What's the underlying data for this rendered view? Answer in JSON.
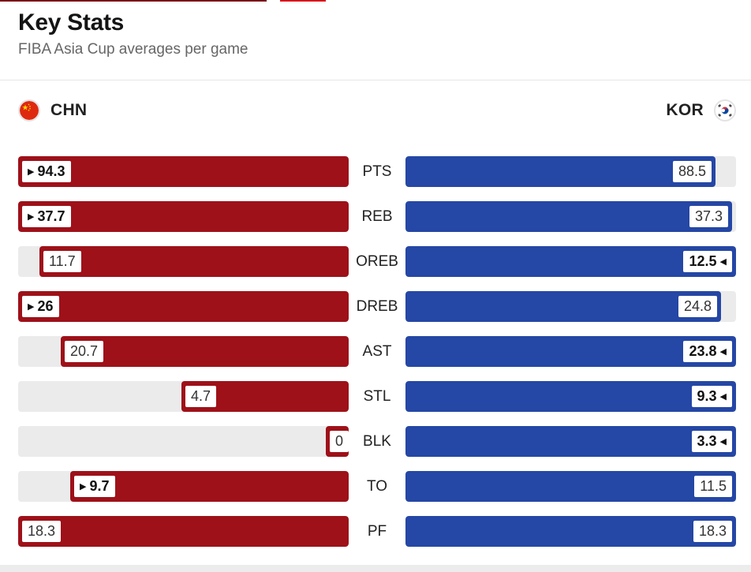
{
  "colors": {
    "chn_bar": "#9e1119",
    "kor_bar": "#2547a5",
    "track": "#ebebeb",
    "accent_dark": "#7a1118",
    "accent_red": "#d9121b"
  },
  "header": {
    "title": "Key Stats",
    "subtitle": "FIBA Asia Cup averages per game"
  },
  "teams": {
    "left": {
      "abbr": "CHN",
      "flag_icon": "china-flag-icon"
    },
    "right": {
      "abbr": "KOR",
      "flag_icon": "south-korea-flag-icon"
    }
  },
  "stats": [
    {
      "label": "PTS",
      "left": "94.3",
      "right": "88.5",
      "left_fraction": 1.0,
      "right_fraction": 0.938,
      "leader": "left"
    },
    {
      "label": "REB",
      "left": "37.7",
      "right": "37.3",
      "left_fraction": 1.0,
      "right_fraction": 0.989,
      "leader": "left"
    },
    {
      "label": "OREB",
      "left": "11.7",
      "right": "12.5",
      "left_fraction": 0.936,
      "right_fraction": 1.0,
      "leader": "right"
    },
    {
      "label": "DREB",
      "left": "26",
      "right": "24.8",
      "left_fraction": 1.0,
      "right_fraction": 0.954,
      "leader": "left"
    },
    {
      "label": "AST",
      "left": "20.7",
      "right": "23.8",
      "left_fraction": 0.87,
      "right_fraction": 1.0,
      "leader": "right"
    },
    {
      "label": "STL",
      "left": "4.7",
      "right": "9.3",
      "left_fraction": 0.505,
      "right_fraction": 1.0,
      "leader": "right"
    },
    {
      "label": "BLK",
      "left": "0",
      "right": "3.3",
      "left_fraction": 0.0,
      "right_fraction": 1.0,
      "leader": "right"
    },
    {
      "label": "TO",
      "left": "9.7",
      "right": "11.5",
      "left_fraction": 0.843,
      "right_fraction": 1.0,
      "leader": "left"
    },
    {
      "label": "PF",
      "left": "18.3",
      "right": "18.3",
      "left_fraction": 1.0,
      "right_fraction": 1.0,
      "leader": "none"
    }
  ]
}
